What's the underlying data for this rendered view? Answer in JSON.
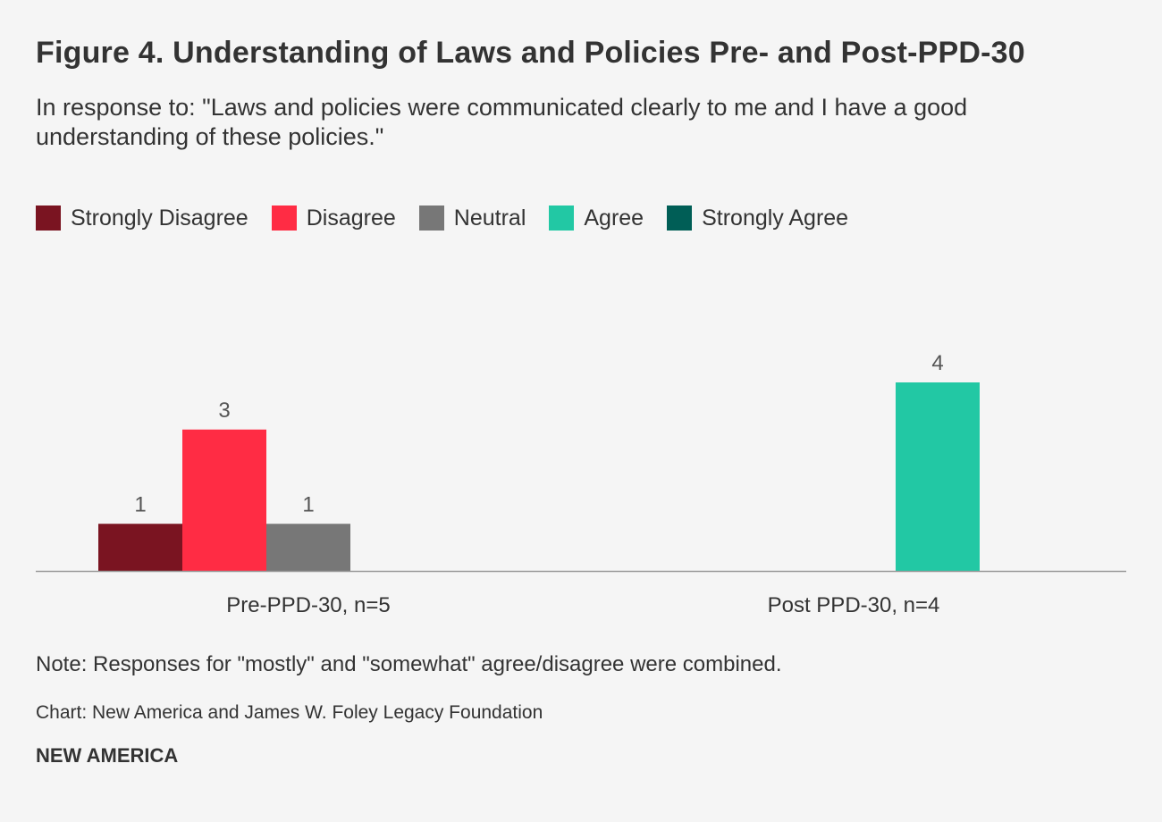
{
  "header": {
    "title": "Figure 4. Understanding of Laws and Policies Pre- and Post-PPD-30",
    "subtitle": "In response to: \"Laws and policies were communicated clearly to me and I have a good understanding of these policies.\""
  },
  "chart_data": {
    "type": "bar",
    "categories": [
      "Pre-PPD-30, n=5",
      "Post PPD-30, n=4"
    ],
    "series": [
      {
        "name": "Strongly Disagree",
        "color": "#7a1421",
        "values": [
          1,
          0
        ]
      },
      {
        "name": "Disagree",
        "color": "#ff2c44",
        "values": [
          3,
          0
        ]
      },
      {
        "name": "Neutral",
        "color": "#777777",
        "values": [
          1,
          0
        ]
      },
      {
        "name": "Agree",
        "color": "#22c8a4",
        "values": [
          0,
          4
        ]
      },
      {
        "name": "Strongly Agree",
        "color": "#005e56",
        "values": [
          0,
          0
        ]
      }
    ],
    "ylim": [
      0,
      4
    ],
    "grid": false,
    "legend_position": "top-left",
    "data_labels": true
  },
  "footer": {
    "note": "Note: Responses for \"mostly\" and \"somewhat\" agree/disagree were combined.",
    "source": "Chart: New America and James W. Foley Legacy Foundation",
    "brand": "NEW AMERICA"
  }
}
